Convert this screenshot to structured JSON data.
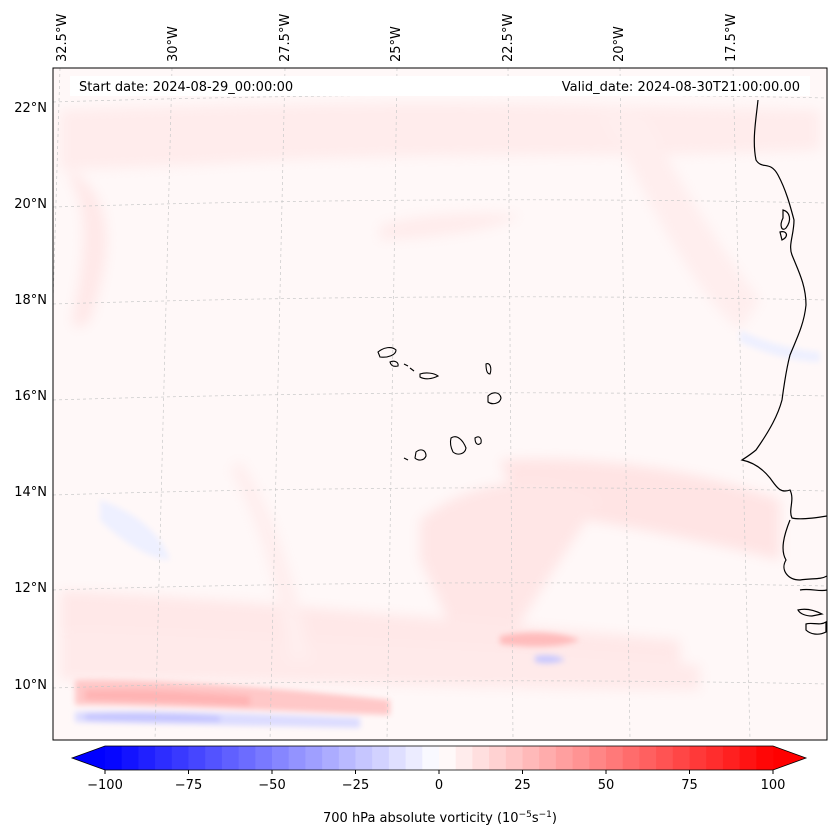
{
  "header": {
    "start_date": "Start date: 2024-08-29_00:00:00",
    "valid_date": "Valid_date: 2024-08-30T21:00:00.00"
  },
  "map": {
    "lon_labels": [
      "32.5°W",
      "30°W",
      "27.5°W",
      "25°W",
      "22.5°W",
      "20°W",
      "17.5°W"
    ],
    "lat_labels": [
      "22°N",
      "20°N",
      "18°N",
      "16°N",
      "14°N",
      "12°N",
      "10°N"
    ],
    "gridlines": true,
    "coastline_color": "#000000",
    "gridline_color": "#c8c8c8"
  },
  "colorbar": {
    "label": "700 hPa absolute vorticity (10⁻⁵s⁻¹)",
    "label_text": "700 hPa absolute vorticity (10",
    "label_exp1": "−5",
    "label_mid": "s",
    "label_exp2": "−1",
    "label_close": ")",
    "tick_labels": [
      "−100",
      "−75",
      "−50",
      "−25",
      "0",
      "25",
      "50",
      "75",
      "100"
    ],
    "min": -100,
    "max": 100,
    "step": 5,
    "cmap": "bwr",
    "colors": {
      "neg": "#0000ff",
      "mid": "#ffffff",
      "pos": "#ff0000"
    }
  }
}
